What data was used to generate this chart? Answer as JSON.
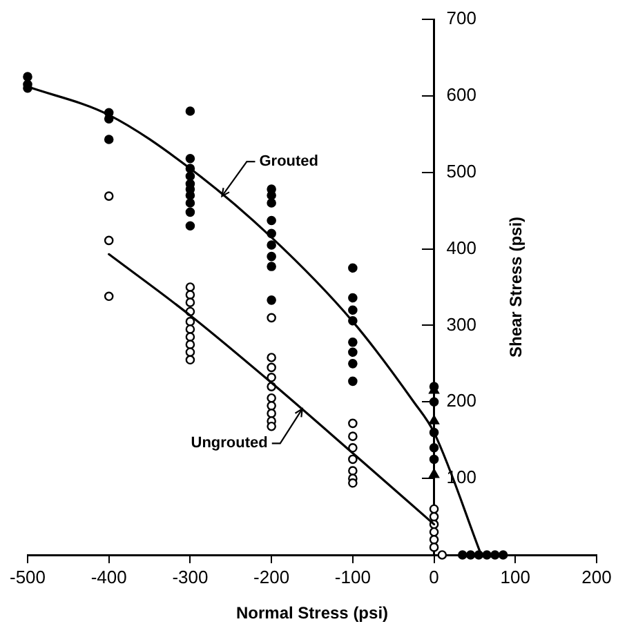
{
  "chart_data": {
    "type": "scatter",
    "xlabel": "Normal Stress (psi)",
    "ylabel": "Shear Stress (psi)",
    "xlim": [
      -500,
      200
    ],
    "xticks": [
      -500,
      -400,
      -300,
      -200,
      -100,
      0,
      100,
      200
    ],
    "ylim": [
      0,
      700
    ],
    "yticks": [
      100,
      200,
      300,
      400,
      500,
      600,
      700
    ],
    "grid": false,
    "legend": false,
    "series": [
      {
        "type": "line",
        "name": "Grouted",
        "color": "#000000",
        "marker": "none",
        "x": [
          -500,
          -400,
          -300,
          -200,
          -100,
          -25,
          0,
          58
        ],
        "values": [
          612,
          575,
          505,
          415,
          305,
          200,
          160,
          0
        ]
      },
      {
        "type": "line",
        "name": "Ungrouted",
        "color": "#000000",
        "marker": "none",
        "x": [
          -400,
          -300,
          -200,
          -100,
          0
        ],
        "values": [
          393,
          313,
          225,
          133,
          40
        ]
      },
      {
        "color": "#000000",
        "marker": "circle",
        "x": [
          -500,
          -500,
          -500,
          -400,
          -400,
          -400,
          -300,
          -300,
          -300,
          -300,
          -300,
          -300,
          -300,
          -300,
          -300,
          -300,
          -200,
          -200,
          -200,
          -200,
          -200,
          -200,
          -200,
          -200,
          -200,
          -100,
          -100,
          -100,
          -100,
          -100,
          -100,
          -100,
          -100,
          0,
          0,
          0,
          0,
          0,
          35,
          45,
          55,
          65,
          75,
          85
        ],
        "values": [
          625,
          615,
          610,
          578,
          570,
          543,
          580,
          518,
          505,
          495,
          485,
          478,
          470,
          460,
          448,
          430,
          478,
          470,
          460,
          437,
          420,
          405,
          390,
          377,
          333,
          375,
          336,
          320,
          306,
          278,
          265,
          250,
          227,
          220,
          200,
          160,
          140,
          125,
          0,
          0,
          0,
          0,
          0,
          0
        ]
      },
      {
        "color": "#ffffff",
        "marker": "circle",
        "x": [
          -400,
          -400,
          -400,
          -300,
          -300,
          -300,
          -300,
          -300,
          -300,
          -300,
          -300,
          -300,
          -300,
          -200,
          -200,
          -200,
          -200,
          -200,
          -200,
          -200,
          -200,
          -200,
          -200,
          -100,
          -100,
          -100,
          -100,
          -100,
          -100,
          -100,
          0,
          0,
          0,
          0,
          0,
          0,
          10
        ],
        "values": [
          469,
          411,
          338,
          350,
          340,
          330,
          318,
          305,
          295,
          285,
          275,
          265,
          255,
          310,
          258,
          245,
          232,
          220,
          205,
          195,
          185,
          175,
          168,
          172,
          155,
          140,
          125,
          110,
          100,
          94,
          60,
          50,
          40,
          30,
          20,
          10,
          0
        ]
      },
      {
        "color": "#000000",
        "marker": "triangle",
        "x": [
          0,
          0,
          0
        ],
        "values": [
          215,
          175,
          105
        ]
      }
    ]
  }
}
